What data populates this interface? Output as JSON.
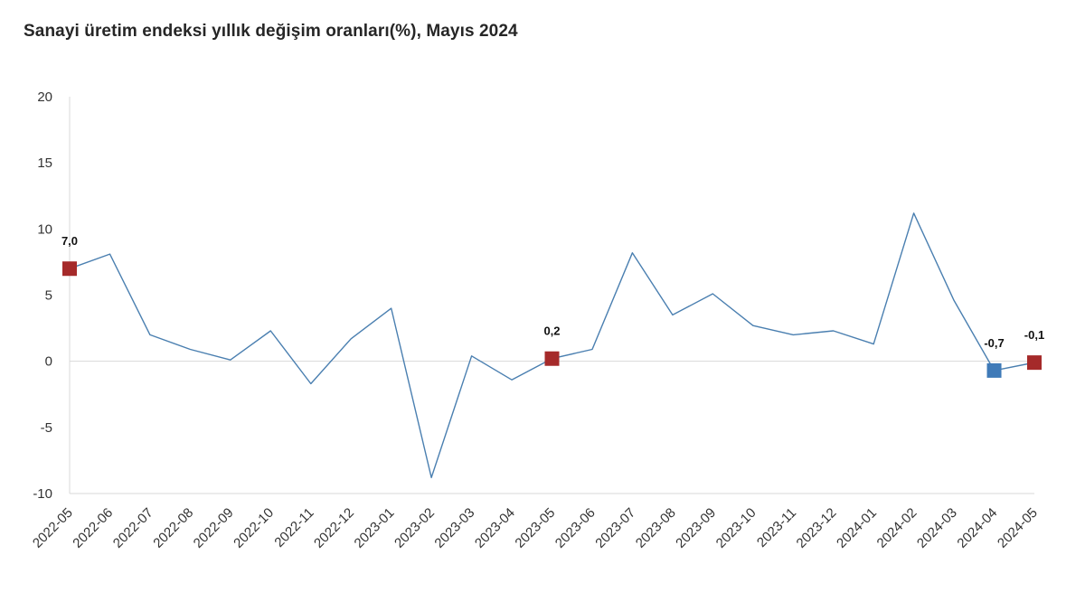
{
  "chart_data": {
    "type": "line",
    "title": "Sanayi üretim endeksi yıllık değişim oranları(%), Mayıs 2024",
    "xlabel": "",
    "ylabel": "",
    "ylim": [
      -10,
      20
    ],
    "y_ticks": [
      "20",
      "15",
      "10",
      "5",
      "0",
      "-5",
      "-10"
    ],
    "y_tick_values": [
      20,
      15,
      10,
      5,
      0,
      -5,
      -10
    ],
    "categories": [
      "2022-05",
      "2022-06",
      "2022-07",
      "2022-08",
      "2022-09",
      "2022-10",
      "2022-11",
      "2022-12",
      "2023-01",
      "2023-02",
      "2023-03",
      "2023-04",
      "2023-05",
      "2023-06",
      "2023-07",
      "2023-08",
      "2023-09",
      "2023-10",
      "2023-11",
      "2023-12",
      "2024-01",
      "2024-02",
      "2024-03",
      "2024-04",
      "2024-05"
    ],
    "series": [
      {
        "values": [
          7.0,
          8.1,
          2.0,
          0.9,
          0.1,
          2.3,
          -1.7,
          1.7,
          4.0,
          -8.8,
          0.4,
          -1.4,
          0.2,
          0.9,
          8.2,
          3.5,
          5.1,
          2.7,
          2.0,
          2.3,
          1.3,
          11.2,
          4.6,
          -0.7,
          -0.1
        ],
        "color": "#4a7fb0"
      }
    ],
    "highlights": [
      {
        "index": 0,
        "label": "7,0",
        "color": "#a52a2a"
      },
      {
        "index": 12,
        "label": "0,2",
        "color": "#a52a2a"
      },
      {
        "index": 23,
        "label": "-0,7",
        "color": "#3f7ab8"
      },
      {
        "index": 24,
        "label": "-0,1",
        "color": "#a52a2a"
      }
    ],
    "grid": false,
    "zero_line": true,
    "legend": "none"
  }
}
